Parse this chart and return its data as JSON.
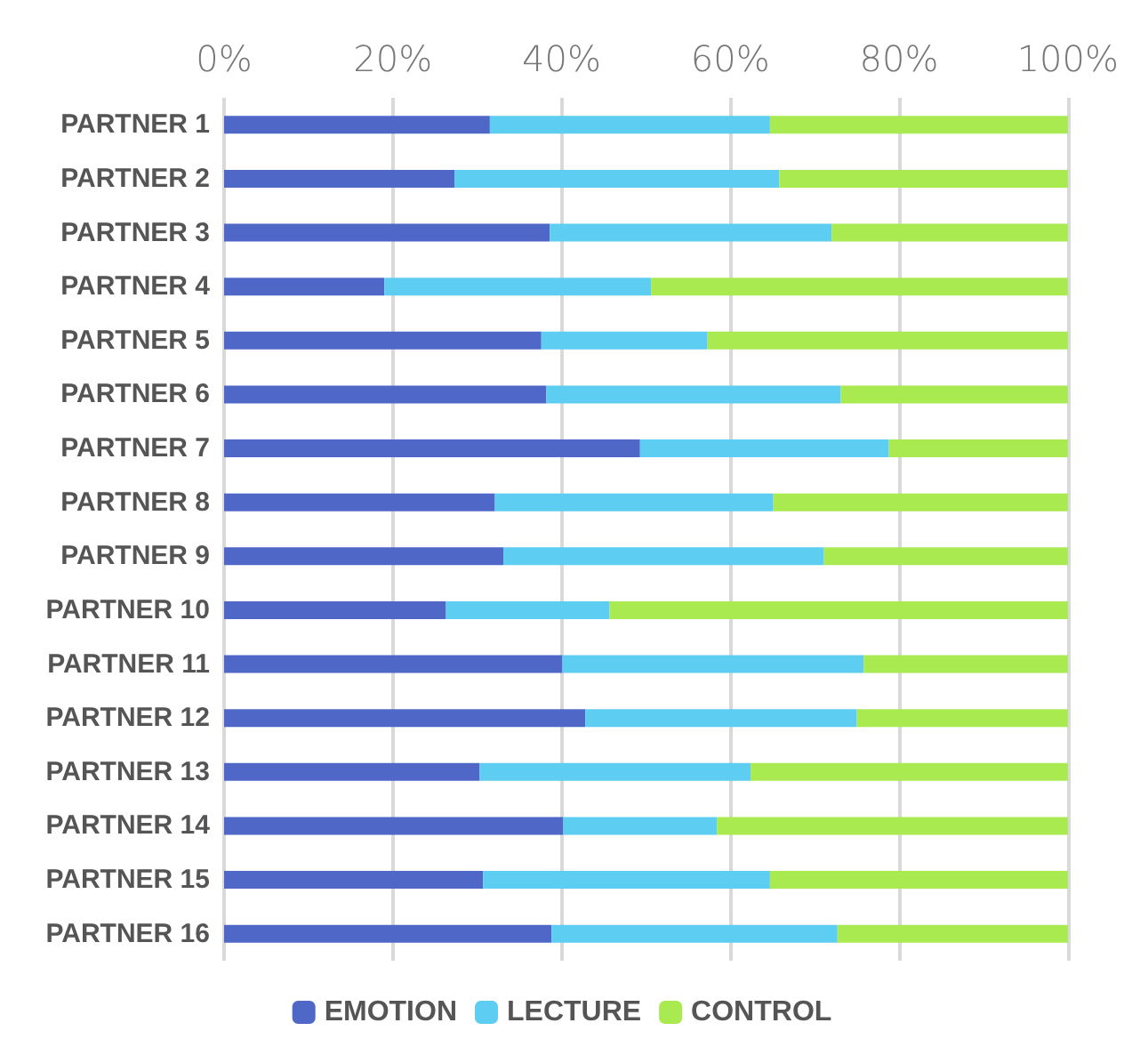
{
  "chart_data": {
    "type": "bar",
    "orientation": "horizontal",
    "stacked": true,
    "categories": [
      "PARTNER 1",
      "PARTNER 2",
      "PARTNER 3",
      "PARTNER 4",
      "PARTNER 5",
      "PARTNER 6",
      "PARTNER 7",
      "PARTNER 8",
      "PARTNER 9",
      "PARTNER 10",
      "PARTNER 11",
      "PARTNER 12",
      "PARTNER 13",
      "PARTNER 14",
      "PARTNER 15",
      "PARTNER 16"
    ],
    "series": [
      {
        "name": "EMOTION",
        "color": "#4f68c8",
        "values": [
          31.5,
          27.3,
          38.6,
          19.0,
          37.6,
          38.2,
          49.3,
          32.1,
          33.1,
          26.3,
          40.1,
          42.8,
          30.3,
          40.2,
          30.7,
          38.8
        ]
      },
      {
        "name": "LECTURE",
        "color": "#5ecdf2",
        "values": [
          33.2,
          38.5,
          33.4,
          31.6,
          19.7,
          34.9,
          29.5,
          33.0,
          38.0,
          19.4,
          35.7,
          32.2,
          32.1,
          18.2,
          34.0,
          33.9
        ]
      },
      {
        "name": "CONTROL",
        "color": "#a8ea50",
        "values": [
          35.3,
          34.2,
          28.0,
          49.4,
          42.7,
          26.9,
          21.2,
          34.9,
          28.9,
          54.3,
          24.2,
          25.0,
          37.6,
          41.6,
          35.3,
          27.3
        ]
      }
    ],
    "xlim": [
      0,
      100
    ],
    "xticks": [
      {
        "value": 0,
        "label": "0%"
      },
      {
        "value": 20,
        "label": "20%"
      },
      {
        "value": 40,
        "label": "40%"
      },
      {
        "value": 60,
        "label": "60%"
      },
      {
        "value": 80,
        "label": "80%"
      },
      {
        "value": 100,
        "label": "100%"
      }
    ],
    "grid": "x",
    "legend": "bottom"
  }
}
